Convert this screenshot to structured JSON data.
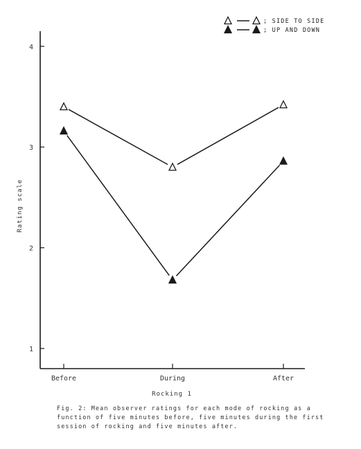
{
  "chart_data": {
    "type": "line",
    "categories": [
      "Before",
      "During",
      "After"
    ],
    "series": [
      {
        "name": "SIDE TO SIDE",
        "marker": "open-triangle",
        "values": [
          3.4,
          2.8,
          3.42
        ]
      },
      {
        "name": "UP AND DOWN",
        "marker": "filled-triangle",
        "values": [
          3.16,
          1.68,
          2.86
        ]
      }
    ],
    "xlabel": "Rocking 1",
    "ylabel": "Rating scale",
    "ylim": [
      0.8,
      4.15
    ],
    "yticks": [
      1,
      2,
      3,
      4
    ],
    "grid": false,
    "legend_position": "top-right",
    "legend_separator": ";",
    "line_color": "#1a1a1a"
  },
  "caption": "Fig. 2:  Mean observer ratings for each mode of rocking as a\nfunction of five minutes before, five minutes during the first\nsession of rocking and five minutes after."
}
